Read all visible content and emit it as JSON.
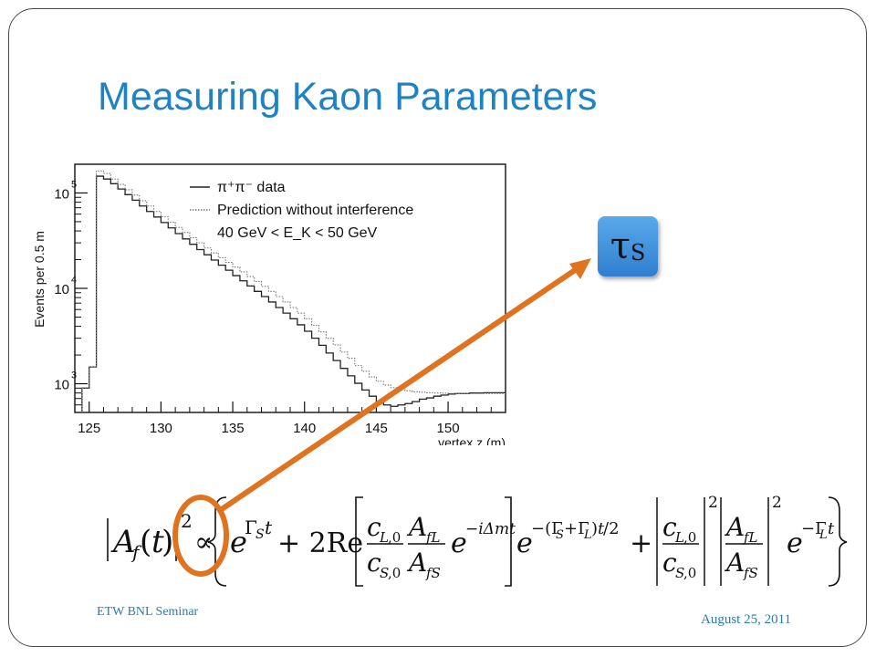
{
  "slide": {
    "title": "Measuring Kaon Parameters",
    "footer_left": "ETW BNL Seminar",
    "footer_right": "August 25, 2011"
  },
  "tau_label": {
    "symbol": "τ",
    "subscript": "S"
  },
  "equation": {
    "lhs": "|A_f(t)|² ∝",
    "terms": [
      "e^(Γ_S t)",
      "+ 2Re[ (c_L,0 / c_S,0)(A_fL / A_fS) e^(−iΔmt) ] e^(−(Γ_S+Γ_L)t/2)",
      "+ |c_L,0 / c_S,0|² |A_fL / A_fS|² e^(−Γ_L t)"
    ]
  },
  "colors": {
    "title": "#1f82c2",
    "arrow": "#e0731f",
    "box": "#3a8ddb",
    "footer": "#2c7ba8"
  },
  "chart_data": {
    "type": "line",
    "title": "",
    "ylabel": "Events per 0.5 m",
    "xlabel": "vertex z (m)",
    "yscale": "log",
    "xlim": [
      124,
      154
    ],
    "ylim": [
      500,
      200000
    ],
    "x_ticks": [
      125,
      130,
      135,
      140,
      145,
      150
    ],
    "y_ticks": [
      {
        "value": 1000,
        "label": "10",
        "exp": "3"
      },
      {
        "value": 10000,
        "label": "10",
        "exp": "4"
      },
      {
        "value": 100000,
        "label": "10",
        "exp": "5"
      }
    ],
    "legend": {
      "position": "top-right",
      "entries": [
        {
          "label": "π⁺π⁻ data",
          "style": "solid"
        },
        {
          "label": "Prediction without interference",
          "style": "dotted"
        },
        {
          "label": "40 GeV < E_K < 50 GeV",
          "style": "none"
        }
      ]
    },
    "series": [
      {
        "name": "π⁺π⁻ data",
        "style": "solid",
        "x": [
          124.5,
          125,
          125.5,
          126,
          126.5,
          127,
          127.5,
          128,
          128.5,
          129,
          129.5,
          130,
          130.5,
          131,
          131.5,
          132,
          132.5,
          133,
          133.5,
          134,
          134.5,
          135,
          135.5,
          136,
          136.5,
          137,
          137.5,
          138,
          138.5,
          139,
          139.5,
          140,
          140.5,
          141,
          141.5,
          142,
          142.5,
          143,
          143.5,
          144,
          144.5,
          145,
          145.5,
          146,
          146.5,
          147,
          147.5,
          148,
          148.5,
          149,
          149.5,
          150,
          150.5,
          151,
          151.5,
          152,
          152.5,
          153,
          153.5
        ],
        "values": [
          900,
          1500,
          150000,
          140000,
          125000,
          110000,
          96000,
          84000,
          73000,
          64000,
          56000,
          49000,
          43000,
          37500,
          33000,
          29000,
          25500,
          22500,
          19800,
          17500,
          15500,
          13600,
          12000,
          10600,
          9300,
          8200,
          7200,
          6300,
          5500,
          4800,
          4150,
          3550,
          3000,
          2530,
          2100,
          1750,
          1450,
          1210,
          1010,
          860,
          740,
          650,
          600,
          580,
          600,
          620,
          650,
          690,
          710,
          740,
          760,
          780,
          790,
          790,
          800,
          800,
          805,
          805,
          805
        ]
      },
      {
        "name": "Prediction without interference",
        "style": "dotted",
        "x": [
          124.5,
          125,
          125.5,
          126,
          126.5,
          127,
          127.5,
          128,
          128.5,
          129,
          129.5,
          130,
          130.5,
          131,
          131.5,
          132,
          132.5,
          133,
          133.5,
          134,
          134.5,
          135,
          135.5,
          136,
          136.5,
          137,
          137.5,
          138,
          138.5,
          139,
          139.5,
          140,
          140.5,
          141,
          141.5,
          142,
          142.5,
          143,
          143.5,
          144,
          144.5,
          145,
          145.5,
          146,
          146.5,
          147,
          147.5,
          148,
          148.5,
          149,
          149.5,
          150,
          150.5,
          151,
          151.5,
          152,
          152.5,
          153,
          153.5
        ],
        "values": [
          900,
          1500,
          170000,
          160000,
          140000,
          123000,
          108000,
          95000,
          83000,
          73000,
          64000,
          56500,
          49500,
          43500,
          38500,
          34000,
          30000,
          26500,
          23500,
          21000,
          18700,
          16700,
          14900,
          13300,
          11800,
          10500,
          9300,
          8200,
          7200,
          6300,
          5500,
          4800,
          4100,
          3500,
          3000,
          2550,
          2150,
          1850,
          1550,
          1350,
          1180,
          1060,
          970,
          910,
          870,
          845,
          825,
          815,
          805,
          800,
          795,
          790,
          790,
          790,
          790,
          790,
          790,
          790,
          790
        ]
      }
    ]
  }
}
